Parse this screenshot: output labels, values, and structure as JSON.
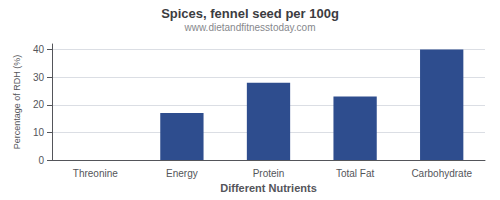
{
  "chart_data": {
    "type": "bar",
    "title": "Spices, fennel seed per 100g",
    "subtitle": "www.dietandfitnesstoday.com",
    "xlabel": "Different Nutrients",
    "ylabel": "Percentage of RDH (%)",
    "categories": [
      "Threonine",
      "Energy",
      "Protein",
      "Total Fat",
      "Carbohydrate"
    ],
    "values": [
      0,
      17,
      28,
      23,
      40
    ],
    "color": "#2e4d8e",
    "ylim": [
      0,
      42
    ],
    "yticks": [
      0,
      10,
      20,
      30,
      40
    ],
    "grid": true
  }
}
